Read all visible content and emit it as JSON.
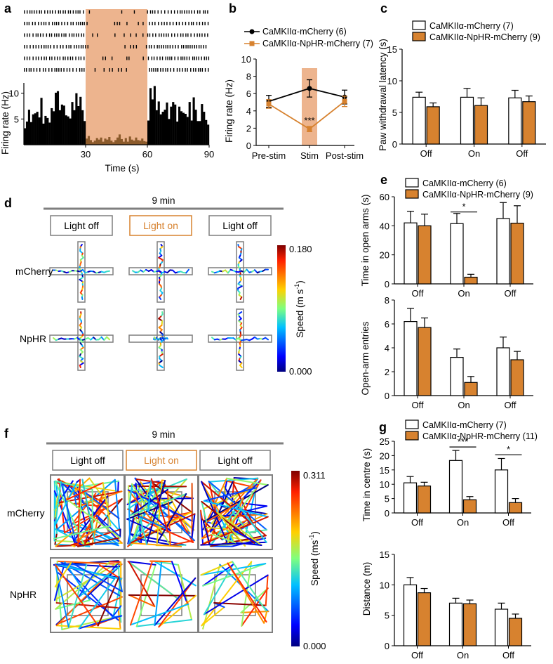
{
  "colors": {
    "orange": "#d7822f",
    "shade": "#edb48e",
    "black": "#000000",
    "grey": "#7f7f7f",
    "white_bar": "#ffffff"
  },
  "panels": {
    "a": {
      "letter": "a",
      "xlabel": "Time (s)",
      "ylabel": "Firing rate (Hz)",
      "xticks": [
        "30",
        "60",
        "90"
      ],
      "yticks": [
        "5",
        "10"
      ],
      "stim_range_s": [
        30,
        60
      ],
      "raster_rows": 6
    },
    "b": {
      "letter": "b",
      "ylabel": "Firing rate (Hz)",
      "legend": [
        "CaMKIIα-mCherry (6)",
        "CaMKIIα-NpHR-mCherry (7)"
      ],
      "sig": "***"
    },
    "c": {
      "letter": "c",
      "ylabel": "Paw withdrawal latency (s)",
      "legend": [
        "CaMKIIα-mCherry (7)",
        "CaMKIIα-NpHR-mCherry (9)"
      ]
    },
    "d": {
      "letter": "d",
      "duration": "9 min",
      "conditions": [
        "Light off",
        "Light on",
        "Light off"
      ],
      "rows": [
        "mCherry",
        "NpHR"
      ],
      "colorbar_max": "0.180",
      "colorbar_min": "0.000",
      "colorbar_label": "Speed (m s",
      "colorbar_unit_sup": "-1",
      "colorbar_close": ")"
    },
    "e": {
      "letter": "e",
      "legend": [
        "CaMKIIα-mCherry (6)",
        "CaMKIIα-NpHR-mCherry (9)"
      ],
      "top_ylabel": "Time in open arms (s)",
      "bottom_ylabel": "Open-arm entries",
      "sig": "*"
    },
    "f": {
      "letter": "f",
      "duration": "9 min",
      "conditions": [
        "Light off",
        "Light on",
        "Light off"
      ],
      "rows": [
        "mCherry",
        "NpHR"
      ],
      "colorbar_max": "0.311",
      "colorbar_min": "0.000",
      "colorbar_label": "Speed (ms",
      "colorbar_unit_sup": "-1",
      "colorbar_close": ")"
    },
    "g": {
      "letter": "g",
      "legend": [
        "CaMKIIα-mCherry (7)",
        "CaMKIIα-NpHR-mCherry (11)"
      ],
      "top_ylabel": "Time in centre (s)",
      "bottom_ylabel": "Distance (m)",
      "sig_on": "***",
      "sig_off": "*"
    }
  },
  "chart_data": [
    {
      "id": "a",
      "type": "bar",
      "title": "",
      "xlabel": "Time (s)",
      "ylabel": "Firing rate (Hz)",
      "xlim": [
        0,
        90
      ],
      "ylim": [
        0,
        12
      ],
      "bin_width_s": 1,
      "values": [
        3.2,
        4.5,
        6.8,
        4.4,
        5.9,
        6.1,
        6.4,
        5.3,
        9.1,
        4.1,
        5.6,
        5.2,
        4.3,
        7.1,
        6.5,
        10.1,
        10.4,
        6.7,
        7.8,
        7.6,
        5.7,
        5.5,
        5.1,
        8.3,
        6.7,
        10.0,
        7.5,
        9.3,
        6.7,
        4.6,
        1.2,
        1.7,
        0.9,
        0.5,
        0.8,
        1.3,
        1.0,
        1.4,
        0.6,
        1.2,
        1.0,
        1.5,
        0.8,
        0.5,
        0.9,
        1.4,
        2.0,
        1.1,
        0.6,
        1.3,
        0.6,
        1.6,
        1.0,
        0.8,
        1.4,
        0.9,
        0.8,
        1.2,
        0.7,
        0.6,
        4.7,
        11.0,
        8.8,
        11.4,
        6.7,
        8.4,
        5.9,
        6.4,
        6.8,
        8.2,
        5.0,
        7.4,
        8.3,
        7.8,
        4.5,
        7.4,
        6.5,
        6.2,
        6.0,
        5.4,
        8.3,
        4.7,
        9.2,
        6.8,
        4.6,
        4.6,
        7.9,
        6.4,
        4.8,
        3.9
      ],
      "stim_window": [
        30,
        60
      ]
    },
    {
      "id": "b",
      "type": "line",
      "categories": [
        "Pre-stim",
        "Stim",
        "Post-stim"
      ],
      "ylim": [
        0,
        10
      ],
      "yticks": [
        0,
        2,
        4,
        6,
        8,
        10
      ],
      "ylabel": "Firing rate (Hz)",
      "series": [
        {
          "name": "CaMKIIα-mCherry (6)",
          "values": [
            5.1,
            6.6,
            5.6
          ],
          "errors": [
            0.7,
            1.0,
            0.8
          ]
        },
        {
          "name": "CaMKIIα-NpHR-mCherry (7)",
          "values": [
            4.8,
            1.9,
            5.1
          ],
          "errors": [
            0.5,
            0.3,
            0.6
          ]
        }
      ],
      "annotations": [
        "***"
      ]
    },
    {
      "id": "c",
      "type": "bar",
      "categories": [
        "Off",
        "On",
        "Off"
      ],
      "ylim": [
        0,
        15
      ],
      "yticks": [
        0,
        5,
        10,
        15
      ],
      "ylabel": "Paw withdrawal latency (s)",
      "series": [
        {
          "name": "CaMKIIα-mCherry (7)",
          "values": [
            7.4,
            7.4,
            7.3
          ],
          "errors": [
            0.8,
            1.4,
            1.2
          ]
        },
        {
          "name": "CaMKIIα-NpHR-mCherry (9)",
          "values": [
            5.9,
            6.1,
            6.7
          ],
          "errors": [
            0.6,
            1.2,
            0.9
          ]
        }
      ]
    },
    {
      "id": "e-top",
      "type": "bar",
      "categories": [
        "Off",
        "On",
        "Off"
      ],
      "ylim": [
        0,
        60
      ],
      "yticks": [
        0,
        20,
        40,
        60
      ],
      "ylabel": "Time in open arms (s)",
      "series": [
        {
          "name": "CaMKIIα-mCherry (6)",
          "values": [
            42,
            41.5,
            45
          ],
          "errors": [
            8,
            7,
            11
          ]
        },
        {
          "name": "CaMKIIα-NpHR-mCherry (9)",
          "values": [
            40,
            4.6,
            41.8
          ],
          "errors": [
            8,
            2,
            12
          ]
        }
      ],
      "annotations": [
        "*"
      ]
    },
    {
      "id": "e-bottom",
      "type": "bar",
      "categories": [
        "Off",
        "On",
        "Off"
      ],
      "ylim": [
        0,
        8
      ],
      "yticks": [
        0,
        2,
        4,
        6,
        8
      ],
      "ylabel": "Open-arm entries",
      "series": [
        {
          "name": "CaMKIIα-mCherry (6)",
          "values": [
            6.2,
            3.2,
            4.0
          ],
          "errors": [
            1.1,
            0.7,
            0.9
          ]
        },
        {
          "name": "CaMKIIα-NpHR-mCherry (9)",
          "values": [
            5.7,
            1.1,
            3.0
          ],
          "errors": [
            0.8,
            0.5,
            0.7
          ]
        }
      ]
    },
    {
      "id": "g-top",
      "type": "bar",
      "categories": [
        "Off",
        "On",
        "Off"
      ],
      "ylim": [
        0,
        25
      ],
      "yticks": [
        0,
        5,
        10,
        15,
        20,
        25
      ],
      "ylabel": "Time in centre (s)",
      "series": [
        {
          "name": "CaMKIIα-mCherry (7)",
          "values": [
            10.5,
            18.3,
            15.0
          ],
          "errors": [
            2.2,
            3.5,
            4.0
          ]
        },
        {
          "name": "CaMKIIα-NpHR-mCherry (11)",
          "values": [
            9.4,
            4.6,
            3.6
          ],
          "errors": [
            1.3,
            1.1,
            1.4
          ]
        }
      ],
      "annotations": [
        "***",
        "*"
      ]
    },
    {
      "id": "g-bottom",
      "type": "bar",
      "categories": [
        "Off",
        "On",
        "Off"
      ],
      "ylim": [
        0,
        15
      ],
      "yticks": [
        0,
        5,
        10,
        15
      ],
      "ylabel": "Distance (m)",
      "series": [
        {
          "name": "CaMKIIα-mCherry (7)",
          "values": [
            10.0,
            7.0,
            6.0
          ],
          "errors": [
            1.2,
            0.8,
            1.0
          ]
        },
        {
          "name": "CaMKIIα-NpHR-mCherry (11)",
          "values": [
            8.7,
            6.9,
            4.5
          ],
          "errors": [
            0.7,
            0.6,
            0.7
          ]
        }
      ]
    }
  ]
}
